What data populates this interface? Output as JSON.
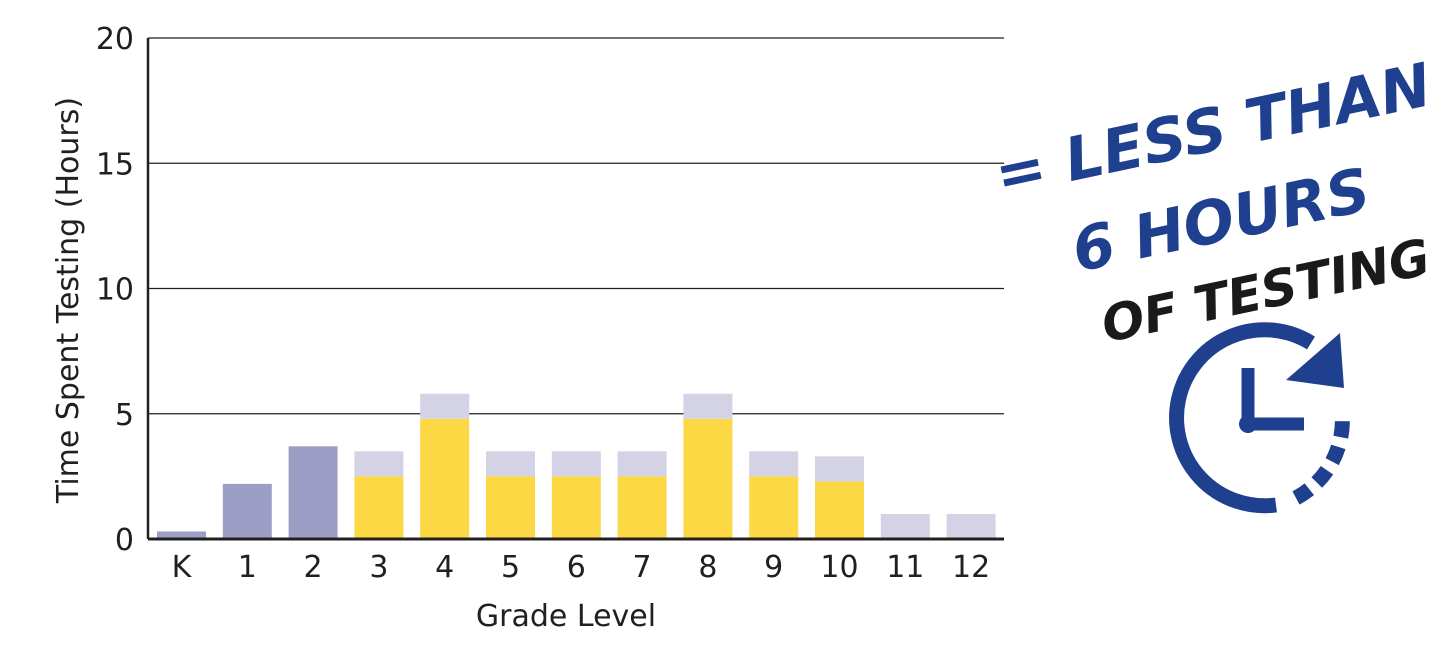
{
  "chart_data": {
    "type": "bar",
    "xlabel": "Grade Level",
    "ylabel": "Time Spent Testing (Hours)",
    "ylim": [
      0,
      20
    ],
    "yticks": [
      "0",
      "5",
      "10",
      "15",
      "20"
    ],
    "grid": true,
    "categories": [
      "K",
      "1",
      "2",
      "3",
      "4",
      "5",
      "6",
      "7",
      "8",
      "9",
      "10",
      "11",
      "12"
    ],
    "series": [
      {
        "values": [
          0.3,
          2.2,
          3.7,
          2.5,
          4.8,
          2.5,
          2.5,
          2.5,
          4.8,
          2.5,
          2.3,
          0,
          0
        ]
      },
      {
        "values": [
          0,
          0,
          0,
          1.0,
          1.0,
          1.0,
          1.0,
          1.0,
          1.0,
          1.0,
          1.0,
          1.0,
          1.0
        ]
      }
    ],
    "colors": {
      "single_segment": "#9c9ec6",
      "yellow_segment": "#fcd844",
      "top_segment": "#d4d3e6",
      "gridline": "#231f20",
      "axis": "#231f20"
    }
  },
  "callout": {
    "line1": "= LESS THAN",
    "line2": "6 HOURS",
    "line3": "OF TESTING",
    "icon": "clock-arrow-icon",
    "colors": {
      "blue": "#1f3f8f",
      "dark": "#1a1a1a"
    }
  }
}
